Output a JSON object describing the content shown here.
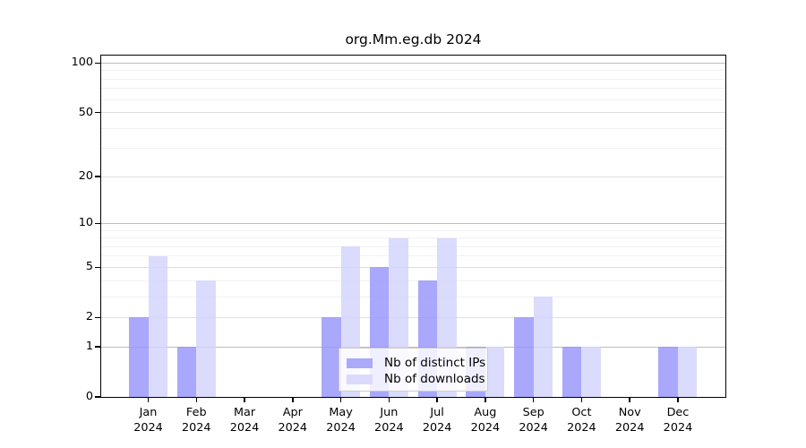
{
  "title": "org.Mm.eg.db 2024",
  "chart_data": {
    "type": "bar",
    "title": "org.Mm.eg.db 2024",
    "year": "2024",
    "categories": [
      "Jan",
      "Feb",
      "Mar",
      "Apr",
      "May",
      "Jun",
      "Jul",
      "Aug",
      "Sep",
      "Oct",
      "Nov",
      "Dec"
    ],
    "series": [
      {
        "key": "distinct-ips",
        "name": "Nb of distinct IPs",
        "color": "rgba(150,149,251,0.82)",
        "solid_color": "#aaa9fa",
        "values": [
          2,
          1,
          0,
          0,
          2,
          5,
          4,
          1,
          2,
          1,
          0,
          1
        ]
      },
      {
        "key": "downloads",
        "name": "Nb of downloads",
        "color": "rgba(211,211,252,0.82)",
        "solid_color": "#dadafc",
        "values": [
          6,
          4,
          0,
          0,
          7,
          8,
          8,
          1,
          3,
          1,
          0,
          1
        ]
      }
    ],
    "yscale": "log1p",
    "ylim": [
      0,
      111
    ],
    "yticks": [
      0,
      1,
      2,
      5,
      10,
      20,
      50,
      100
    ],
    "minor_yticks": [
      3,
      4,
      6,
      7,
      8,
      9,
      30,
      40,
      60,
      70,
      80,
      90
    ],
    "grid": true,
    "legend_position": "inside-bottom-center"
  },
  "colors": {
    "bar_distinct_ips": "#aaa9fa",
    "bar_downloads": "#dadafc",
    "grid_power10": "#bdbdbd",
    "grid_major": "#dedede",
    "grid_minor": "#f1f1f1",
    "frame": "#000000",
    "background": "#ffffff"
  }
}
